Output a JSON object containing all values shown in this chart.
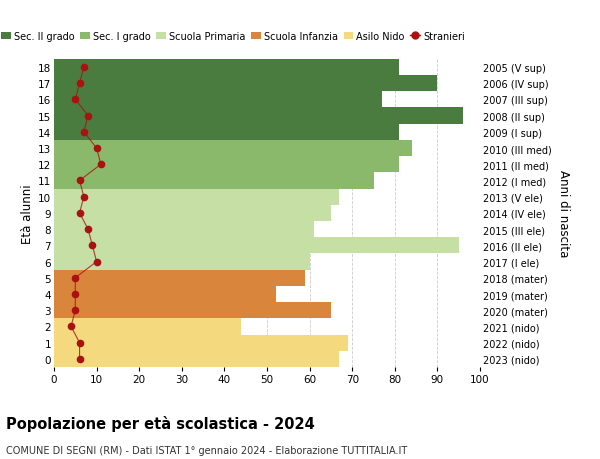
{
  "ages": [
    18,
    17,
    16,
    15,
    14,
    13,
    12,
    11,
    10,
    9,
    8,
    7,
    6,
    5,
    4,
    3,
    2,
    1,
    0
  ],
  "bar_values": [
    81,
    90,
    77,
    96,
    81,
    84,
    81,
    75,
    67,
    65,
    61,
    95,
    60,
    59,
    52,
    65,
    44,
    69,
    67
  ],
  "bar_colors": [
    "#4a7c3f",
    "#4a7c3f",
    "#4a7c3f",
    "#4a7c3f",
    "#4a7c3f",
    "#8ab96b",
    "#8ab96b",
    "#8ab96b",
    "#c5dfa5",
    "#c5dfa5",
    "#c5dfa5",
    "#c5dfa5",
    "#c5dfa5",
    "#d9853b",
    "#d9853b",
    "#d9853b",
    "#f5d97e",
    "#f5d97e",
    "#f5d97e"
  ],
  "right_labels": [
    "2005 (V sup)",
    "2006 (IV sup)",
    "2007 (III sup)",
    "2008 (II sup)",
    "2009 (I sup)",
    "2010 (III med)",
    "2011 (II med)",
    "2012 (I med)",
    "2013 (V ele)",
    "2014 (IV ele)",
    "2015 (III ele)",
    "2016 (II ele)",
    "2017 (I ele)",
    "2018 (mater)",
    "2019 (mater)",
    "2020 (mater)",
    "2021 (nido)",
    "2022 (nido)",
    "2023 (nido)"
  ],
  "stranieri_values": [
    7,
    6,
    5,
    8,
    7,
    10,
    11,
    6,
    7,
    6,
    8,
    9,
    10,
    5,
    5,
    5,
    4,
    6,
    6
  ],
  "legend_labels": [
    "Sec. II grado",
    "Sec. I grado",
    "Scuola Primaria",
    "Scuola Infanzia",
    "Asilo Nido",
    "Stranieri"
  ],
  "legend_colors": [
    "#4a7c3f",
    "#8ab96b",
    "#c5dfa5",
    "#d9853b",
    "#f5d97e",
    "#aa1111"
  ],
  "xlabel_vals": [
    0,
    10,
    20,
    30,
    40,
    50,
    60,
    70,
    80,
    90,
    100
  ],
  "ylabel_left": "Età alunni",
  "ylabel_right": "Anni di nascita",
  "title": "Popolazione per età scolastica - 2024",
  "subtitle": "COMUNE DI SEGNI (RM) - Dati ISTAT 1° gennaio 2024 - Elaborazione TUTTITALIA.IT",
  "xlim": [
    0,
    100
  ],
  "bg_color": "#ffffff",
  "grid_color": "#cccccc"
}
